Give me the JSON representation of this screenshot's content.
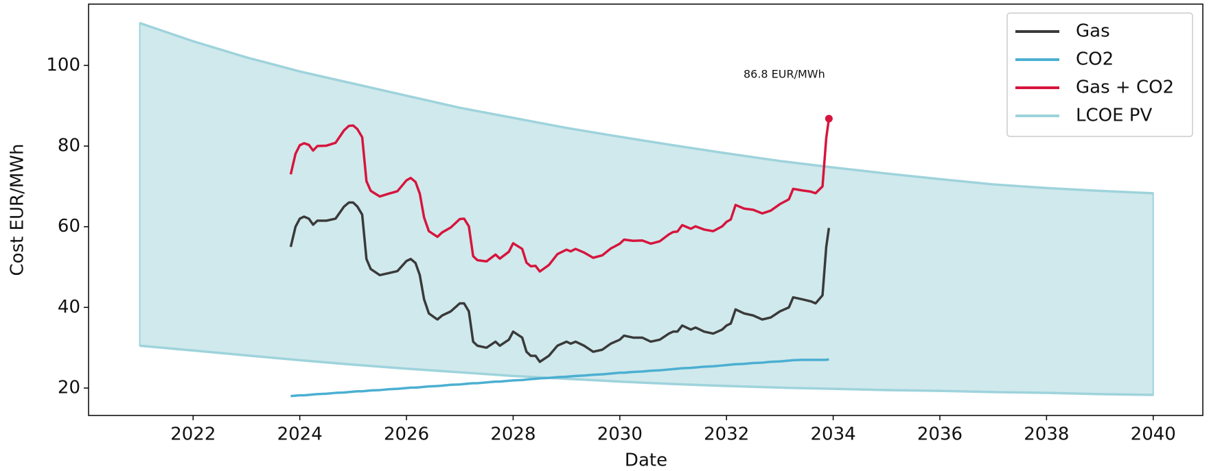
{
  "chart_data": {
    "type": "line",
    "xlabel": "Date",
    "ylabel": "Cost EUR/MWh",
    "xlim": [
      2020.04,
      2040.93
    ],
    "ylim": [
      13.2,
      115.2
    ],
    "xticks": [
      2022,
      2024,
      2026,
      2028,
      2030,
      2032,
      2034,
      2036,
      2038,
      2040
    ],
    "yticks": [
      20,
      40,
      60,
      80,
      100
    ],
    "legend": "upper right",
    "x": [
      2023.83,
      2023.92,
      2024.0,
      2024.08,
      2024.17,
      2024.25,
      2024.33,
      2024.5,
      2024.67,
      2024.83,
      2024.92,
      2025.0,
      2025.08,
      2025.17,
      2025.25,
      2025.33,
      2025.5,
      2025.67,
      2025.83,
      2026.0,
      2026.08,
      2026.17,
      2026.25,
      2026.33,
      2026.42,
      2026.58,
      2026.67,
      2026.83,
      2027.0,
      2027.08,
      2027.17,
      2027.25,
      2027.33,
      2027.5,
      2027.67,
      2027.75,
      2027.92,
      2028.0,
      2028.17,
      2028.25,
      2028.33,
      2028.42,
      2028.5,
      2028.67,
      2028.83,
      2029.0,
      2029.08,
      2029.17,
      2029.33,
      2029.5,
      2029.67,
      2029.83,
      2030.0,
      2030.08,
      2030.25,
      2030.42,
      2030.58,
      2030.75,
      2030.92,
      2031.0,
      2031.08,
      2031.17,
      2031.33,
      2031.42,
      2031.58,
      2031.75,
      2031.92,
      2032.0,
      2032.08,
      2032.17,
      2032.33,
      2032.5,
      2032.67,
      2032.83,
      2033.0,
      2033.17,
      2033.25,
      2033.42,
      2033.58,
      2033.67,
      2033.8,
      2033.87,
      2033.92
    ],
    "series": [
      {
        "name": "Gas",
        "color": "#3a3a3a",
        "values": [
          55,
          60,
          62,
          62.5,
          62,
          60.5,
          61.5,
          61.5,
          62,
          65,
          66,
          66,
          65,
          63,
          52,
          49.5,
          48,
          48.5,
          49,
          51.5,
          52,
          51,
          48,
          42,
          38.5,
          37,
          38,
          39,
          41,
          41,
          39,
          31.5,
          30.5,
          30,
          31.5,
          30.5,
          32,
          34,
          32.5,
          29,
          28,
          28,
          26.5,
          28,
          30.5,
          31.5,
          31,
          31.5,
          30.5,
          29,
          29.5,
          31,
          32,
          33,
          32.5,
          32.5,
          31.5,
          32,
          33.5,
          34,
          34,
          35.5,
          34.5,
          35,
          34,
          33.5,
          34.5,
          35.5,
          36,
          39.5,
          38.5,
          38,
          37,
          37.5,
          39,
          40,
          42.5,
          42,
          41.5,
          41,
          43,
          55,
          59.7
        ]
      },
      {
        "name": "CO2",
        "color": "#4bafd2",
        "values": [
          18.0,
          18.1,
          18.2,
          18.2,
          18.3,
          18.4,
          18.5,
          18.6,
          18.8,
          18.9,
          19.0,
          19.1,
          19.2,
          19.2,
          19.3,
          19.4,
          19.5,
          19.7,
          19.8,
          20.0,
          20.1,
          20.1,
          20.2,
          20.3,
          20.4,
          20.5,
          20.6,
          20.8,
          20.9,
          21.0,
          21.1,
          21.2,
          21.2,
          21.4,
          21.6,
          21.6,
          21.8,
          21.9,
          22.0,
          22.1,
          22.2,
          22.3,
          22.4,
          22.5,
          22.7,
          22.8,
          22.9,
          23.0,
          23.1,
          23.3,
          23.4,
          23.6,
          23.8,
          23.8,
          24.0,
          24.1,
          24.3,
          24.4,
          24.6,
          24.7,
          24.8,
          24.9,
          25.0,
          25.1,
          25.3,
          25.4,
          25.6,
          25.7,
          25.8,
          25.9,
          26.0,
          26.2,
          26.3,
          26.5,
          26.6,
          26.8,
          26.9,
          27.0,
          27.0,
          27.0,
          27.0,
          27.0,
          27.1
        ]
      },
      {
        "name": "Gas + CO2",
        "color": "#d6153d",
        "values": [
          73,
          78.1,
          80.2,
          80.7,
          80.3,
          78.9,
          80.0,
          80.1,
          80.8,
          83.9,
          85.0,
          85.1,
          84.2,
          82.2,
          71.3,
          68.9,
          67.5,
          68.2,
          68.8,
          71.5,
          72.1,
          71.1,
          68.2,
          62.3,
          58.9,
          57.5,
          58.6,
          59.8,
          61.9,
          62.0,
          60.1,
          52.7,
          51.7,
          51.4,
          53.1,
          52.1,
          53.8,
          55.9,
          54.5,
          51.1,
          50.2,
          50.3,
          48.9,
          50.5,
          53.2,
          54.3,
          53.9,
          54.5,
          53.6,
          52.3,
          52.9,
          54.6,
          55.8,
          56.8,
          56.5,
          56.6,
          55.8,
          56.4,
          58.1,
          58.7,
          58.8,
          60.4,
          59.5,
          60.1,
          59.3,
          58.9,
          60.1,
          61.2,
          61.8,
          65.4,
          64.5,
          64.2,
          63.3,
          64.0,
          65.6,
          66.8,
          69.4,
          69.0,
          68.7,
          68.3,
          70,
          82,
          86.8
        ]
      }
    ],
    "band": {
      "name": "LCOE PV",
      "color": "#9ed3dc",
      "fill": "#d0e9ec",
      "x": [
        2021,
        2022,
        2023,
        2024,
        2025,
        2026,
        2027,
        2028,
        2029,
        2030,
        2031,
        2032,
        2033,
        2034,
        2035,
        2036,
        2037,
        2038,
        2039,
        2040
      ],
      "upper": [
        110.5,
        106,
        102,
        98.5,
        95.5,
        92.5,
        89.5,
        87,
        84.5,
        82.3,
        80.2,
        78.2,
        76.3,
        74.7,
        73.2,
        71.8,
        70.5,
        69.6,
        68.9,
        68.3
      ],
      "lower": [
        30.5,
        29.3,
        28.1,
        26.9,
        25.8,
        24.8,
        23.9,
        23.0,
        22.3,
        21.6,
        21.0,
        20.5,
        20.1,
        19.8,
        19.5,
        19.3,
        19.0,
        18.8,
        18.5,
        18.3
      ]
    },
    "annotation": "86.8 EUR/MWh"
  }
}
